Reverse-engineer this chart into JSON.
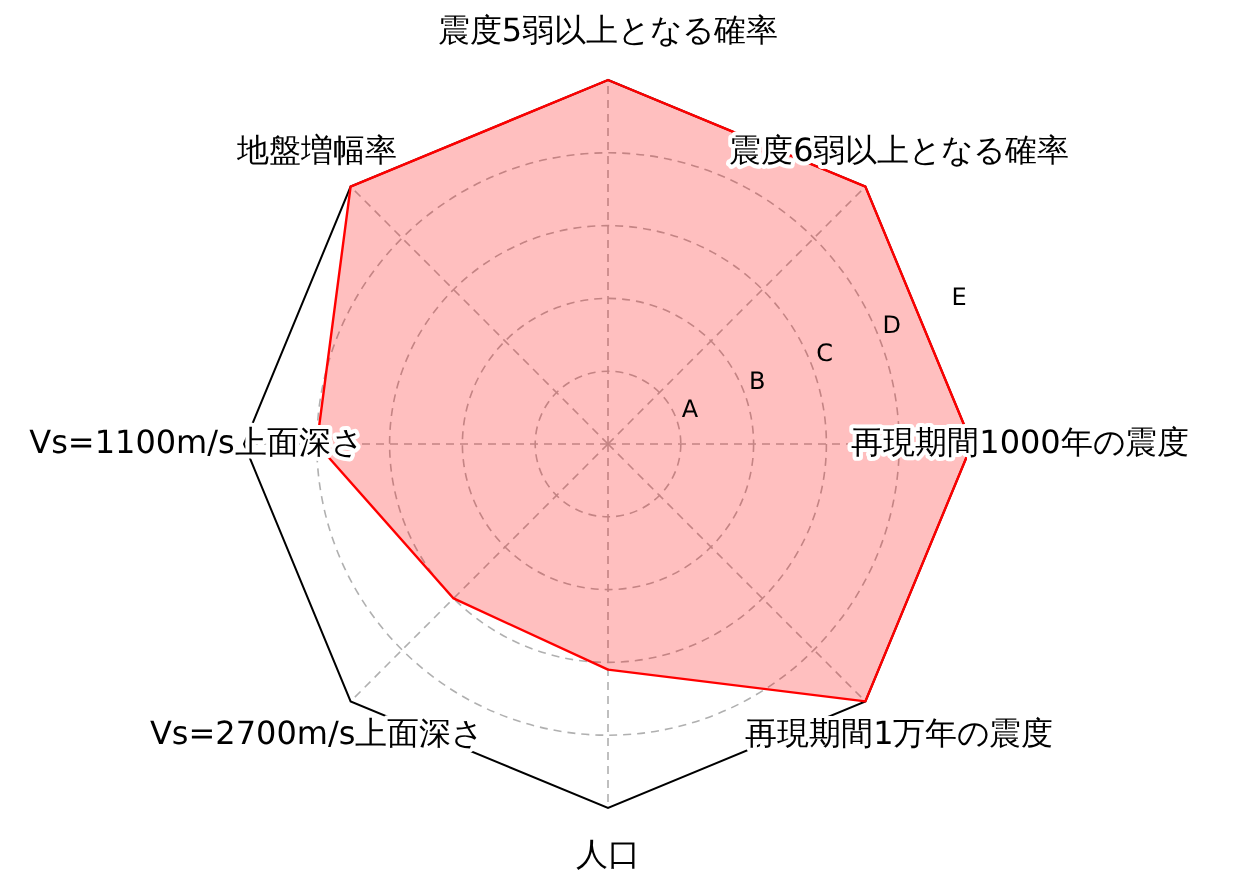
{
  "chart_data": {
    "type": "radar",
    "categories": [
      "震度5弱以上となる確率",
      "震度6弱以上となる確率",
      "再現期間1000年の震度",
      "再現期間1万年の震度",
      "人口",
      "Vs=2700m/s上面深さ",
      "Vs=1100m/s上面深さ",
      "地盤増幅率"
    ],
    "series": [
      {
        "color": "#ff0000",
        "values": [
          5,
          5,
          5,
          5,
          3.1,
          3,
          4,
          5
        ]
      }
    ],
    "ylim": [
      0,
      5
    ],
    "yticks": [
      {
        "value": 1,
        "label": "A"
      },
      {
        "value": 2,
        "label": "B"
      },
      {
        "value": 3,
        "label": "C"
      },
      {
        "value": 4,
        "label": "D"
      },
      {
        "value": 5,
        "label": "E"
      }
    ],
    "grid": true
  }
}
